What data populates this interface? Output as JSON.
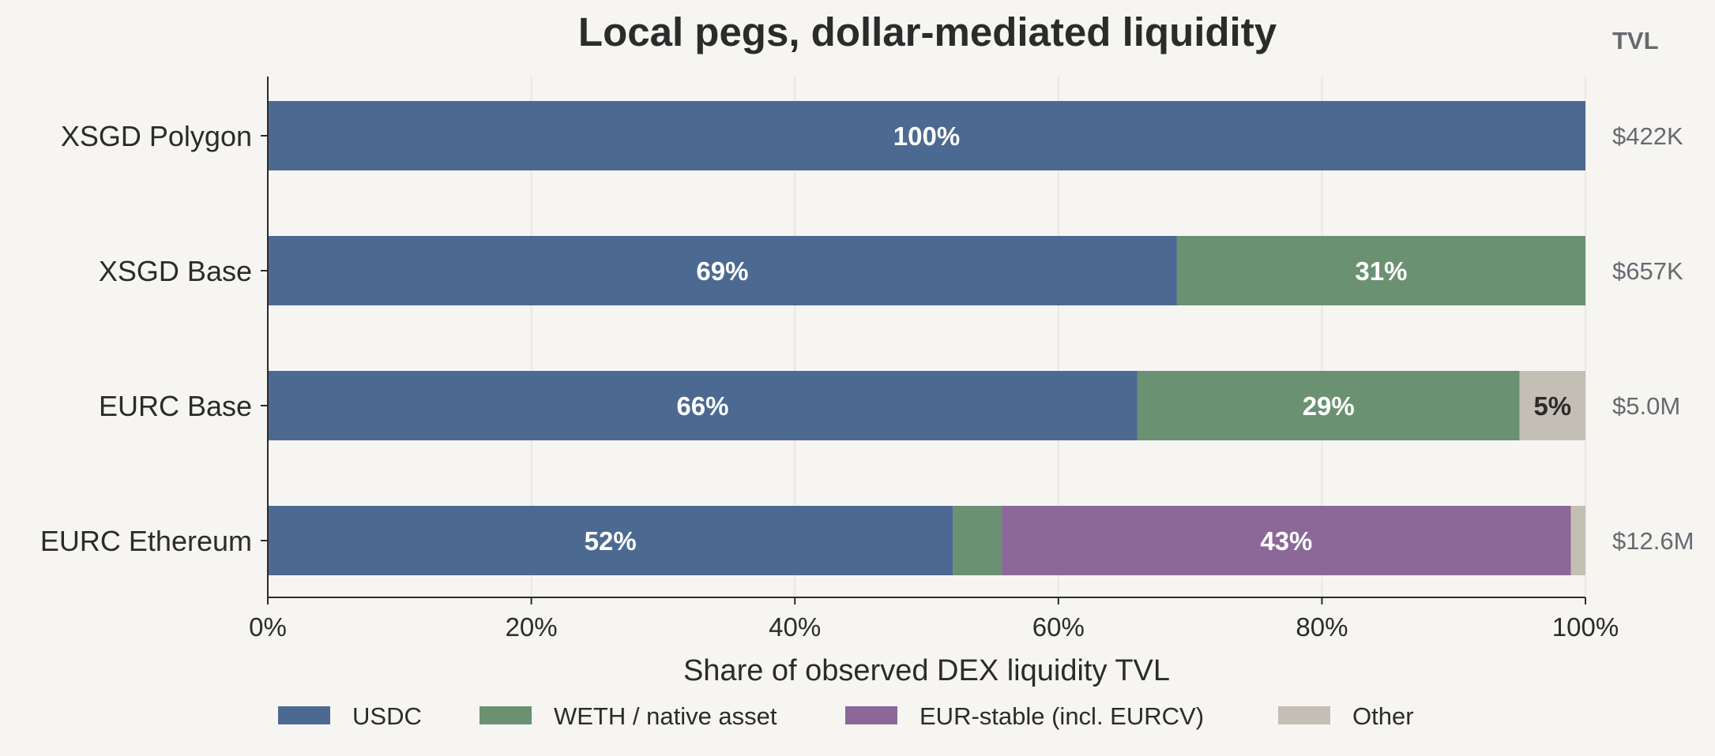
{
  "chart_data": {
    "type": "bar",
    "orientation": "horizontal",
    "stacked": true,
    "title": "Local pegs, dollar-mediated liquidity",
    "xlabel": "Share of observed DEX liquidity TVL",
    "ylabel": "",
    "xlim": [
      0,
      100
    ],
    "x_ticks": [
      "0%",
      "20%",
      "40%",
      "60%",
      "80%",
      "100%"
    ],
    "grid": "vertical, faint",
    "legend_position": "bottom",
    "tvl_header": "TVL",
    "categories": [
      "XSGD  Polygon",
      "XSGD  Base",
      "EURC  Base",
      "EURC  Ethereum"
    ],
    "tvl": [
      "$422K",
      "$657K",
      "$5.0M",
      "$12.6M"
    ],
    "series": [
      {
        "name": "USDC",
        "color": "#4c6a91",
        "label_color": "#ffffff",
        "values": [
          100,
          69,
          66,
          52
        ],
        "labels": [
          "100%",
          "69%",
          "66%",
          "52%"
        ]
      },
      {
        "name": "WETH / native asset",
        "color": "#6b9173",
        "label_color": "#ffffff",
        "values": [
          0,
          31,
          29,
          3.7
        ],
        "labels": [
          "",
          "31%",
          "29%",
          ""
        ]
      },
      {
        "name": "EUR-stable (incl. EURCV)",
        "color": "#8b6898",
        "label_color": "#ffffff",
        "values": [
          0,
          0,
          0,
          43.2
        ],
        "labels": [
          "",
          "",
          "",
          "43%"
        ]
      },
      {
        "name": "Other",
        "color": "#c4bfb4",
        "label_color": "#2b2b2b",
        "values": [
          0,
          0,
          5,
          1.1
        ],
        "labels": [
          "",
          "",
          "5%",
          ""
        ]
      }
    ]
  }
}
